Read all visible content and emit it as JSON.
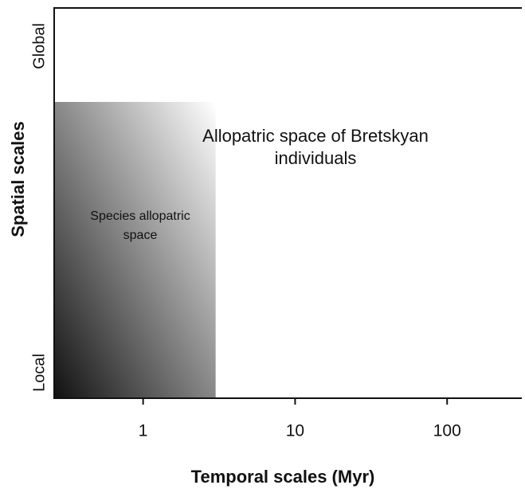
{
  "chart_data": {
    "type": "region",
    "x_label": "Temporal scales (Myr)",
    "y_label": "Spatial scales",
    "x_scale": "log",
    "xlim": [
      0.26,
      310
    ],
    "xticks": [
      1,
      10,
      100
    ],
    "y_categories": [
      "Local",
      "Global"
    ],
    "regions": [
      {
        "label": [
          "Species allopatric",
          "space"
        ],
        "x": [
          0.26,
          3
        ],
        "color_dark": "#111111",
        "color_light": "#ffffff"
      }
    ],
    "annotation": [
      "Allopatric space of Bretskyan",
      "individuals"
    ]
  }
}
